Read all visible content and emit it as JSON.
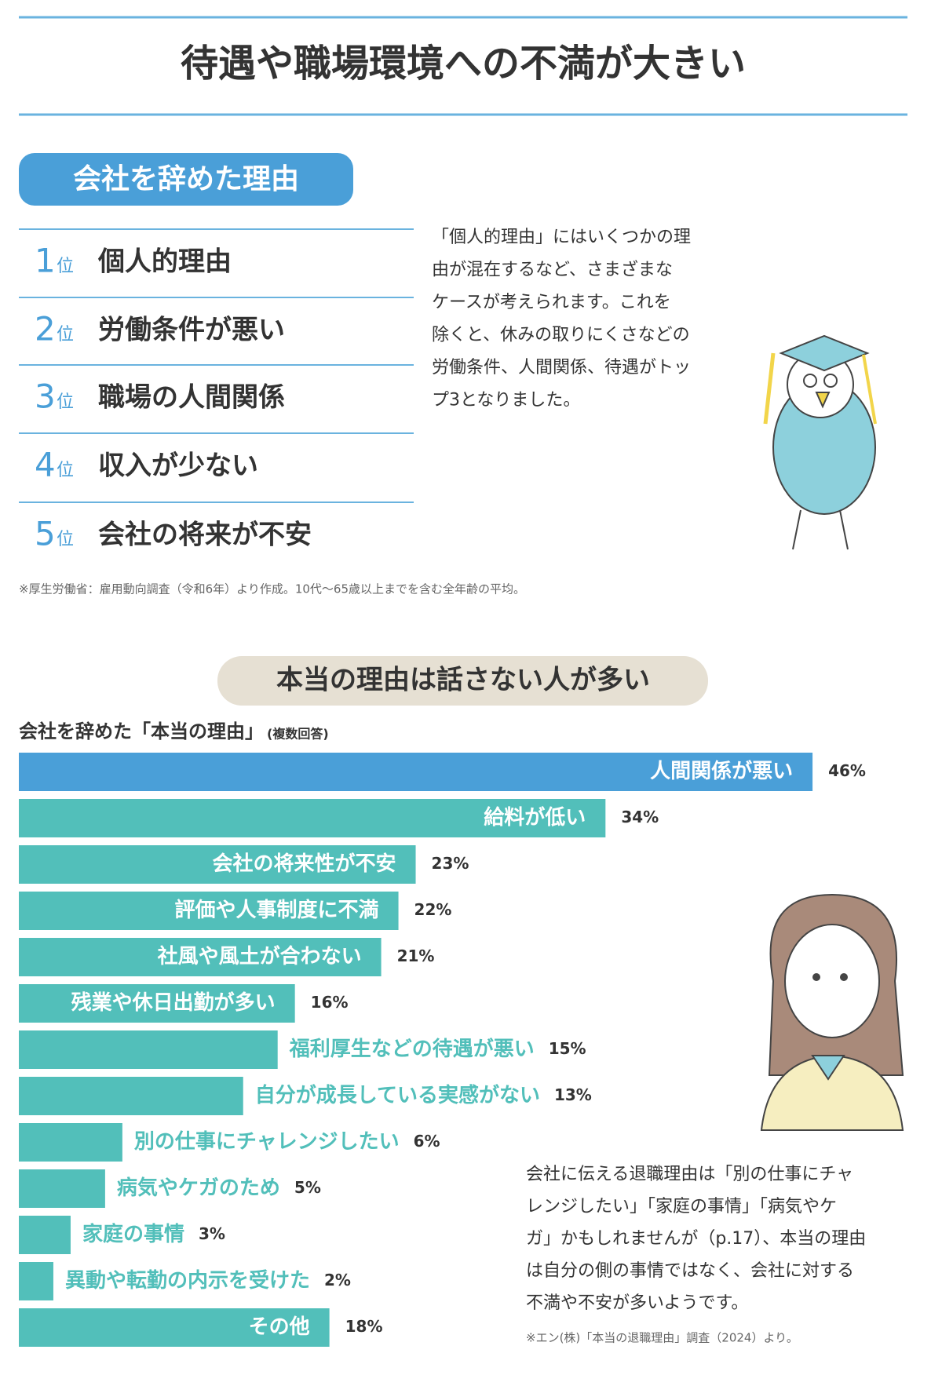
{
  "header": {
    "title": "待遇や職場環境への不満が大きい"
  },
  "ranking": {
    "title": "会社を辞めた理由",
    "items": [
      {
        "rank": 1,
        "unit": "位",
        "label": "個人的理由"
      },
      {
        "rank": 2,
        "unit": "位",
        "label": "労働条件が悪い"
      },
      {
        "rank": 3,
        "unit": "位",
        "label": "職場の人間関係"
      },
      {
        "rank": 4,
        "unit": "位",
        "label": "収入が少ない"
      },
      {
        "rank": 5,
        "unit": "位",
        "label": "会社の将来が不安"
      }
    ],
    "description": [
      "「個人的理由」にはいくつかの理",
      "由が混在するなど、さまざまな",
      "ケースが考えられます。これを",
      "除くと、休みの取りにくさなどの",
      "労働条件、人間関係、待遇がトッ",
      "プ3となりました。"
    ],
    "footnote": "※厚生労働省：雇用動向調査（令和6年）より作成。10代〜65歳以上までを含む全年齢の平均。"
  },
  "section2": {
    "title": "本当の理由は話さない人が多い",
    "description": [
      "会社に伝える退職理由は「別の仕事にチャ",
      "レンジしたい」「家庭の事情」「病気やケ",
      "ガ」かもしれませんが（p.17）、本当の理由",
      "は自分の側の事情ではなく、会社に対する",
      "不満や不安が多いようです。"
    ],
    "source": "※エン(株)「本当の退職理由」調査（2024）より。"
  },
  "chart_data": {
    "type": "bar",
    "orientation": "horizontal",
    "title": "会社を辞めた「本当の理由」",
    "subtitle": "(複数回答)",
    "categories": [
      "人間関係が悪い",
      "給料が低い",
      "会社の将来性が不安",
      "評価や人事制度に不満",
      "社風や風土が合わない",
      "残業や休日出勤が多い",
      "福利厚生などの待遇が悪い",
      "自分が成長している実感がない",
      "別の仕事にチャレンジしたい",
      "病気やケガのため",
      "家庭の事情",
      "異動や転勤の内示を受けた",
      "その他"
    ],
    "values": [
      46,
      34,
      23,
      22,
      21,
      16,
      15,
      13,
      6,
      5,
      3,
      2,
      18
    ],
    "value_labels": [
      "46%",
      "34%",
      "23%",
      "22%",
      "21%",
      "16%",
      "15%",
      "13%",
      "6%",
      "5%",
      "3%",
      "2%",
      "18%"
    ],
    "colors": [
      "#4a9fd8",
      "#52bfba",
      "#52bfba",
      "#52bfba",
      "#52bfba",
      "#52bfba",
      "#52bfba",
      "#52bfba",
      "#52bfba",
      "#52bfba",
      "#52bfba",
      "#52bfba",
      "#52bfba"
    ]
  }
}
